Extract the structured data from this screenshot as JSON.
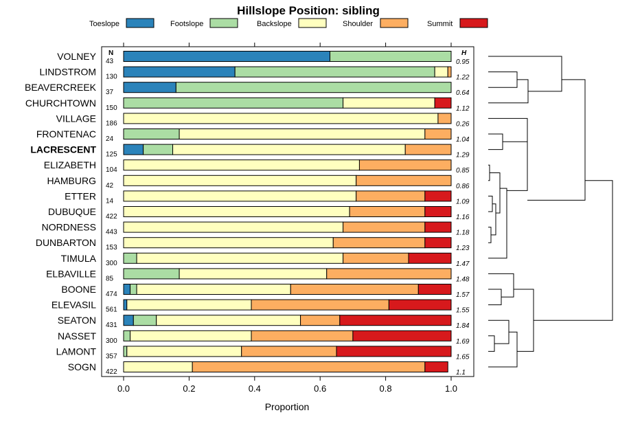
{
  "chart_data": {
    "type": "bar",
    "orientation": "horizontal",
    "stacked": true,
    "title": "Hillslope Position: sibling",
    "xlabel": "Proportion",
    "ylabel": "",
    "xlim": [
      0,
      1
    ],
    "x_ticks": [
      "0.0",
      "0.2",
      "0.4",
      "0.6",
      "0.8",
      "1.0"
    ],
    "x_tick_values": [
      0,
      0.2,
      0.4,
      0.6,
      0.8,
      1.0
    ],
    "n_header": "N",
    "h_header": "H",
    "highlighted": "LACRESCENT",
    "legend": [
      {
        "name": "Toeslope",
        "color": "#2b83ba"
      },
      {
        "name": "Footslope",
        "color": "#abdda4"
      },
      {
        "name": "Backslope",
        "color": "#ffffbf"
      },
      {
        "name": "Shoulder",
        "color": "#fdae61"
      },
      {
        "name": "Summit",
        "color": "#d7191c"
      }
    ],
    "categories": [
      "VOLNEY",
      "LINDSTROM",
      "BEAVERCREEK",
      "CHURCHTOWN",
      "VILLAGE",
      "FRONTENAC",
      "LACRESCENT",
      "ELIZABETH",
      "HAMBURG",
      "ETTER",
      "DUBUQUE",
      "NORDNESS",
      "DUNBARTON",
      "TIMULA",
      "ELBAVILLE",
      "BOONE",
      "ELEVASIL",
      "SEATON",
      "NASSET",
      "LAMONT",
      "SOGN"
    ],
    "n": [
      "43",
      "130",
      "37",
      "150",
      "186",
      "24",
      "125",
      "104",
      "42",
      "14",
      "422",
      "443",
      "153",
      "300",
      "85",
      "474",
      "561",
      "431",
      "300",
      "357",
      "422"
    ],
    "h": [
      "0.95",
      "1.22",
      "0.64",
      "1.12",
      "0.26",
      "1.04",
      "1.29",
      "0.85",
      "0.86",
      "1.09",
      "1.16",
      "1.18",
      "1.23",
      "1.47",
      "1.48",
      "1.57",
      "1.55",
      "1.84",
      "1.69",
      "1.65",
      "1.1"
    ],
    "series": [
      {
        "name": "Toeslope",
        "values": [
          0.63,
          0.34,
          0.16,
          0.0,
          0.0,
          0.0,
          0.06,
          0.0,
          0.0,
          0.0,
          0.0,
          0.0,
          0.0,
          0.0,
          0.0,
          0.02,
          0.01,
          0.03,
          0.0,
          0.0,
          0.0
        ]
      },
      {
        "name": "Footslope",
        "values": [
          0.37,
          0.61,
          0.84,
          0.67,
          0.0,
          0.17,
          0.09,
          0.0,
          0.0,
          0.0,
          0.0,
          0.0,
          0.0,
          0.04,
          0.17,
          0.02,
          0.0,
          0.07,
          0.02,
          0.01,
          0.0
        ]
      },
      {
        "name": "Backslope",
        "values": [
          0.0,
          0.04,
          0.0,
          0.28,
          0.96,
          0.75,
          0.71,
          0.72,
          0.71,
          0.71,
          0.69,
          0.67,
          0.64,
          0.63,
          0.45,
          0.47,
          0.38,
          0.44,
          0.37,
          0.35,
          0.21
        ]
      },
      {
        "name": "Shoulder",
        "values": [
          0.0,
          0.01,
          0.0,
          0.0,
          0.04,
          0.08,
          0.14,
          0.28,
          0.29,
          0.21,
          0.23,
          0.25,
          0.28,
          0.2,
          0.38,
          0.39,
          0.42,
          0.12,
          0.31,
          0.29,
          0.71
        ]
      },
      {
        "name": "Summit",
        "values": [
          0.0,
          0.0,
          0.0,
          0.05,
          0.0,
          0.0,
          0.0,
          0.0,
          0.0,
          0.08,
          0.08,
          0.08,
          0.08,
          0.13,
          0.0,
          0.1,
          0.19,
          0.34,
          0.3,
          0.35,
          0.07
        ]
      }
    ]
  }
}
